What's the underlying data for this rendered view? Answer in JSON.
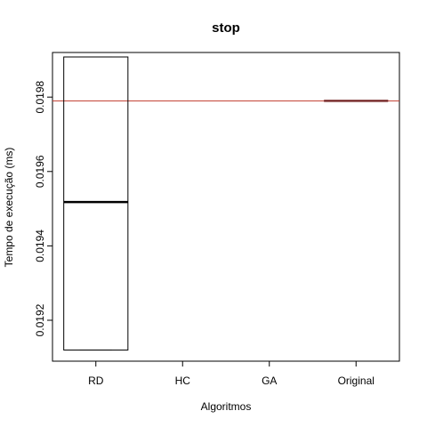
{
  "chart_data": {
    "type": "box",
    "title": "stop",
    "xlabel": "Algoritmos",
    "ylabel": "Tempo de execução (ms)",
    "categories": [
      "RD",
      "HC",
      "GA",
      "Original"
    ],
    "ylim": [
      0.01909,
      0.01992
    ],
    "yticks": [
      0.0192,
      0.0194,
      0.0196,
      0.0198
    ],
    "ytick_labels": [
      "0.0192",
      "0.0194",
      "0.0196",
      "0.0198"
    ],
    "boxes": [
      {
        "category": "RD",
        "min": 0.01912,
        "q1": 0.01912,
        "median": 0.019518,
        "q3": 0.019908,
        "max": 0.019908
      },
      {
        "category": "Original",
        "min": 0.01979,
        "q1": 0.01979,
        "median": 0.01979,
        "q3": 0.01979,
        "max": 0.01979
      }
    ],
    "reference_line": {
      "value": 0.01979,
      "color": "#c0392b"
    },
    "median_color_original": "#7b2f2f",
    "grid": false
  }
}
